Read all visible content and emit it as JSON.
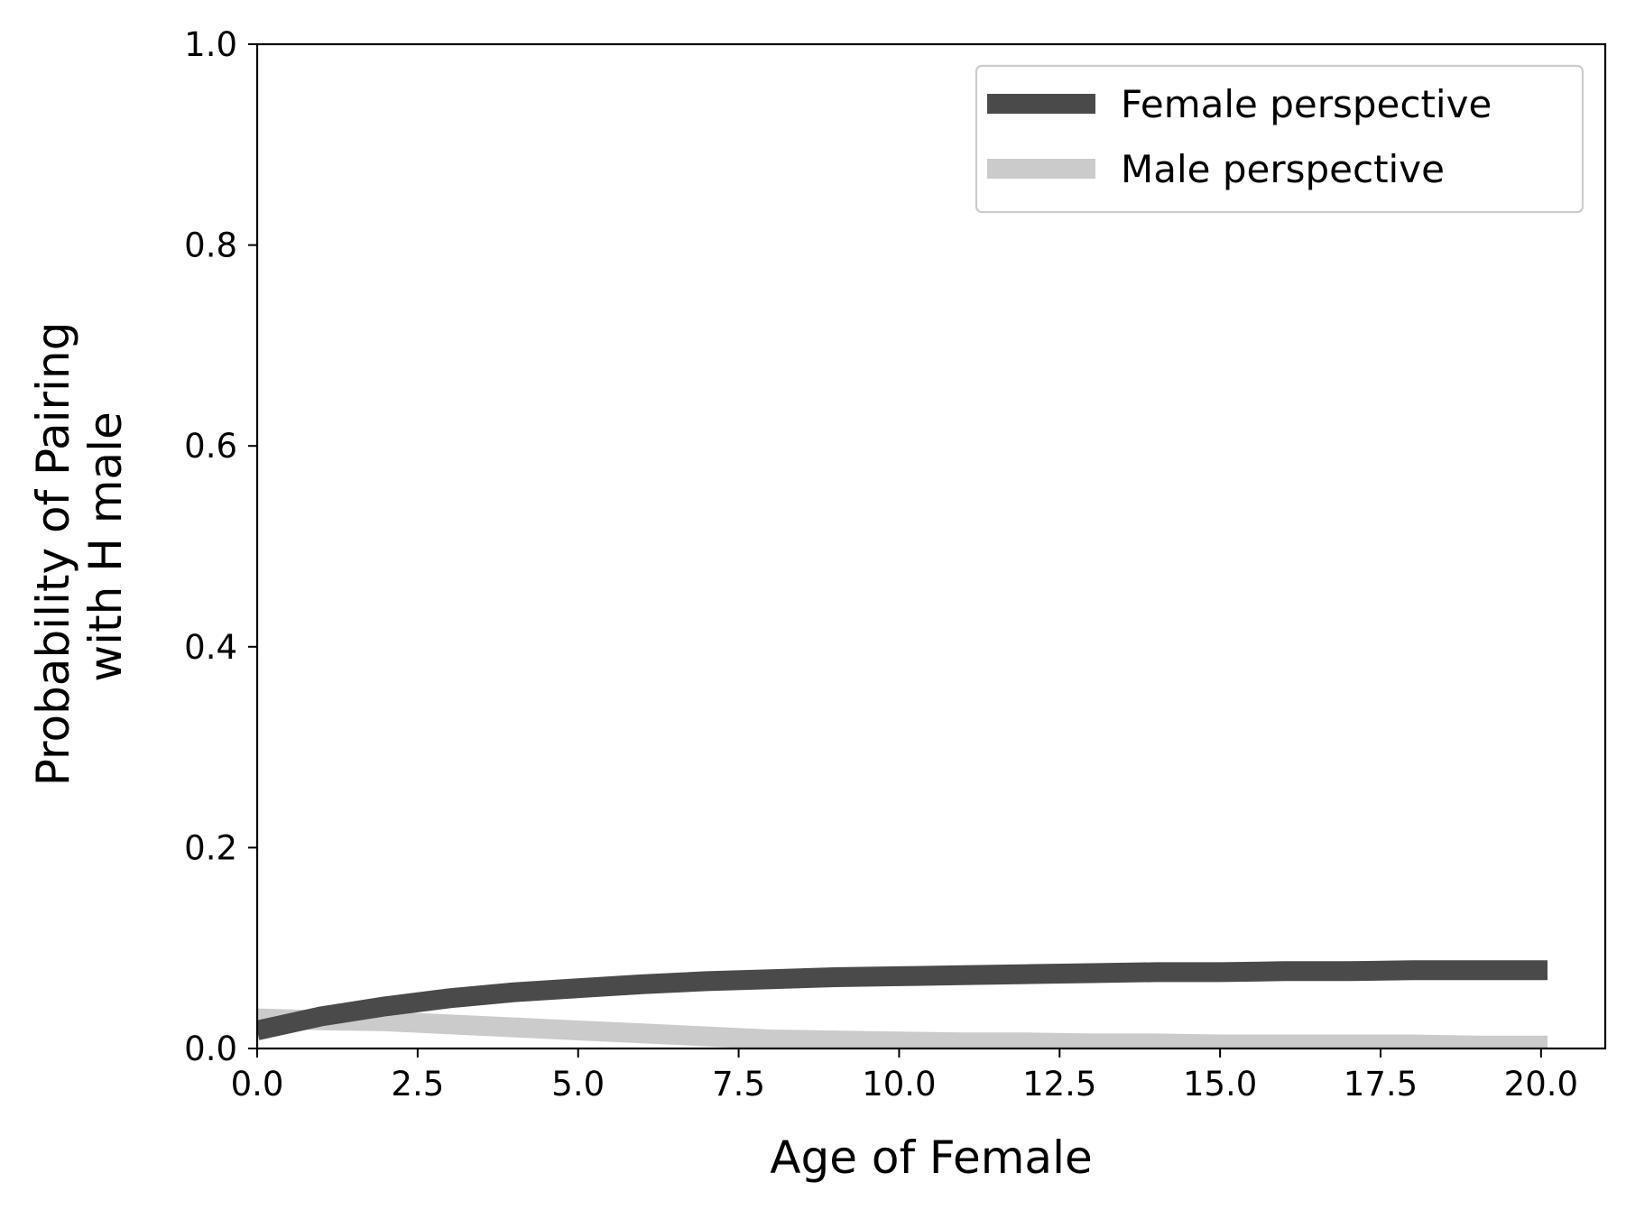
{
  "chart_data": {
    "type": "line",
    "title": "",
    "xlabel": "Age of Female",
    "ylabel_lines": [
      "Probability of Pairing",
      "with H male"
    ],
    "xlim": [
      0,
      21
    ],
    "ylim": [
      0,
      1
    ],
    "xticks": [
      0.0,
      2.5,
      5.0,
      7.5,
      10.0,
      12.5,
      15.0,
      17.5,
      20.0
    ],
    "xtick_labels": [
      "0.0",
      "2.5",
      "5.0",
      "7.5",
      "10.0",
      "12.5",
      "15.0",
      "17.5",
      "20.0"
    ],
    "yticks": [
      0.0,
      0.2,
      0.4,
      0.6,
      0.8,
      1.0
    ],
    "ytick_labels": [
      "0.0",
      "0.2",
      "0.4",
      "0.6",
      "0.8",
      "1.0"
    ],
    "grid": false,
    "legend_position": "top-right",
    "x": [
      0,
      1,
      2,
      3,
      4,
      5,
      6,
      7,
      8,
      9,
      10,
      11,
      12,
      13,
      14,
      15,
      16,
      17,
      18,
      19,
      20.1
    ],
    "series": [
      {
        "name": "Female perspective",
        "color": "#4a4a4a",
        "values": [
          0.018,
          0.032,
          0.042,
          0.05,
          0.056,
          0.06,
          0.064,
          0.067,
          0.069,
          0.071,
          0.072,
          0.073,
          0.074,
          0.075,
          0.076,
          0.076,
          0.077,
          0.077,
          0.078,
          0.078,
          0.078
        ]
      },
      {
        "name": "Male perspective",
        "color": "#cbcbcb",
        "values": [
          0.03,
          0.028,
          0.027,
          0.024,
          0.021,
          0.018,
          0.015,
          0.012,
          0.009,
          0.008,
          0.007,
          0.006,
          0.006,
          0.005,
          0.005,
          0.004,
          0.004,
          0.004,
          0.004,
          0.003,
          0.003
        ]
      }
    ]
  }
}
